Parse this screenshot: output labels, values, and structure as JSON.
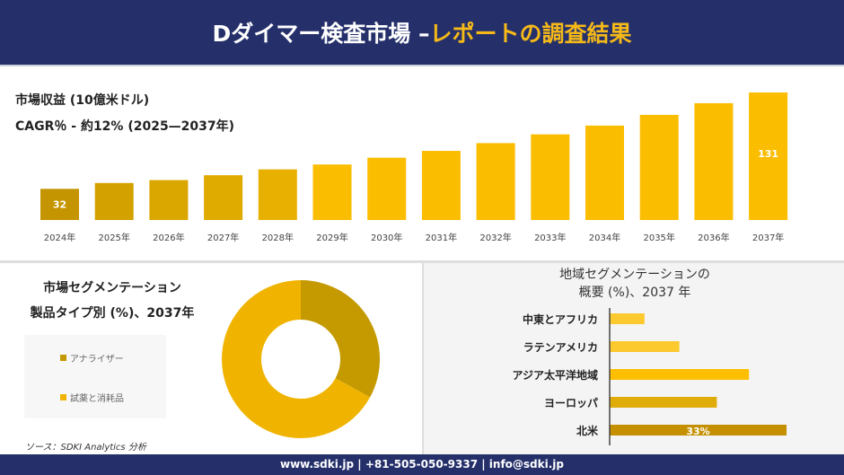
{
  "header": {
    "title_white": "Dダイマー検査市場 –",
    "title_orange": "レポートの調査結果"
  },
  "revenue": {
    "label": "市場収益 (10億米ドル)",
    "cagr": "CAGR％ - 約12% (2025—2037年)"
  },
  "chart_data": [
    {
      "type": "bar",
      "categories": [
        "2024年",
        "2025年",
        "2026年",
        "2027年",
        "2028年",
        "2029年",
        "2030年",
        "2031年",
        "2032年",
        "2033年",
        "2034年",
        "2035年",
        "2036年",
        "2037年"
      ],
      "values": [
        32,
        38,
        41,
        46,
        52,
        57,
        64,
        71,
        79,
        88,
        97,
        108,
        120,
        131
      ],
      "data_labels": {
        "0": "32",
        "13": "131"
      },
      "ylabel": "",
      "xlabel": "",
      "grid": false
    },
    {
      "type": "pie",
      "title": "市場セグメンテーション 製品タイプ別 (%)、2037年",
      "categories": [
        "アナライザー",
        "試薬と消耗品"
      ],
      "values": [
        33,
        67
      ],
      "colors": [
        "#c49a00",
        "#f0b400"
      ],
      "legend": "left",
      "donut": true
    },
    {
      "type": "bar",
      "orientation": "horizontal",
      "title": "地域セグメンテーションの 概要 (%)、2037 年",
      "categories": [
        "中東とアフリカ",
        "ラテンアメリカ",
        "アジア太平洋地域",
        "ヨーロッパ",
        "北米"
      ],
      "values": [
        6.5,
        13,
        26,
        20,
        33
      ],
      "data_labels": {
        "4": "33%"
      },
      "colors": [
        "#fcc92e",
        "#fcc92e",
        "#fdbf00",
        "#e0ac0a",
        "#c49000"
      ]
    }
  ],
  "segment": {
    "title1": "市場セグメンテーション",
    "title2": "製品タイプ別 (%)、2037年",
    "legend": [
      "アナライザー",
      "試薬と消耗品"
    ]
  },
  "region": {
    "title1": "地域セグメンテーションの",
    "title2": "概要 (%)、2037 年"
  },
  "source": "ソース：SDKI Analytics 分析",
  "footer": "www.sdki.jp | +81-505-050-9337 | info@sdki.jp"
}
